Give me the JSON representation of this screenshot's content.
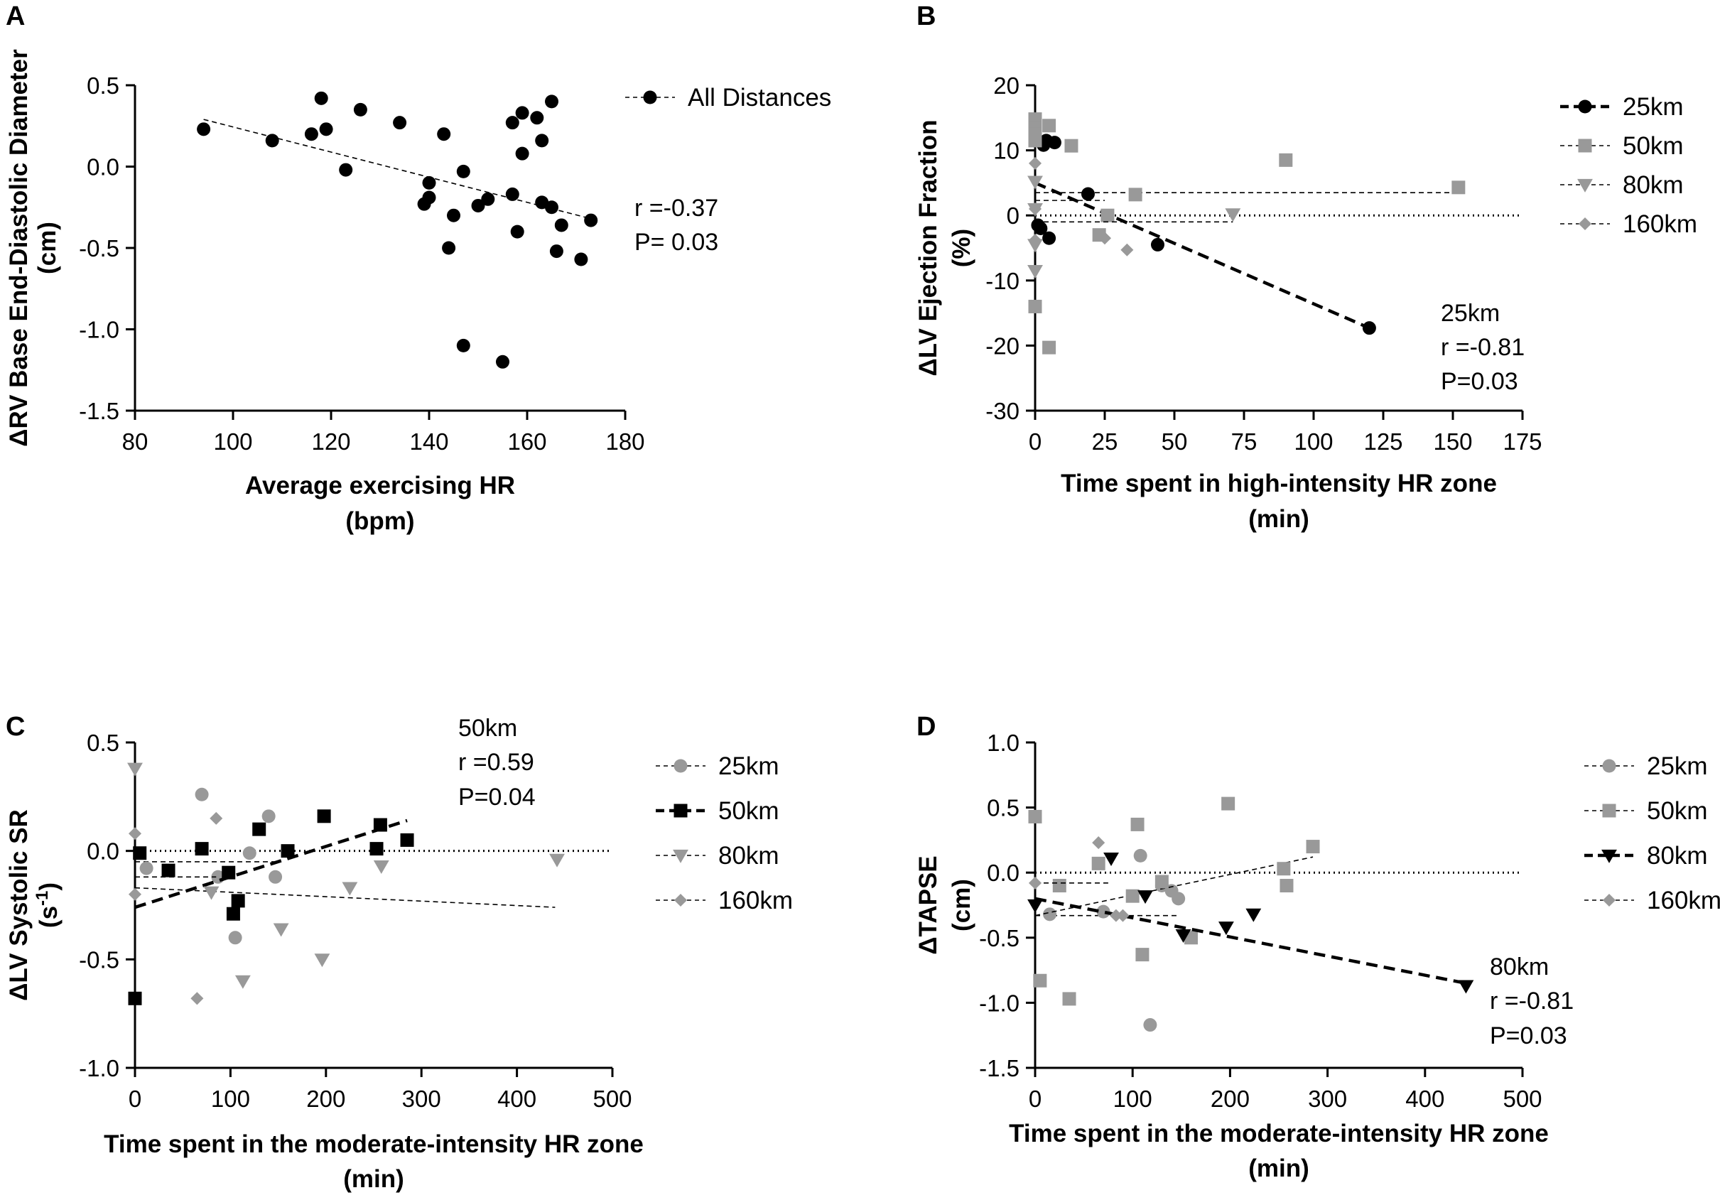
{
  "chart_data": [
    {
      "type": "scatter",
      "panel_label": "A",
      "xlabel": "Average exercising HR",
      "xunit": "(bpm)",
      "ylabel": "ΔRV Base End-Diastolic Diameter",
      "yunit": "(cm)",
      "xlim": [
        80,
        180
      ],
      "ylim": [
        -1.5,
        0.5
      ],
      "xticks": [
        "80",
        "100",
        "120",
        "140",
        "160",
        "180"
      ],
      "yticks": [
        "0.5",
        "0.0",
        "-0.5",
        "-1.0",
        "-1.5"
      ],
      "series": [
        {
          "name": "All Distances",
          "marker": "circle",
          "color": "#000000",
          "fit": [
            [
              94,
              0.29
            ],
            [
              173,
              -0.32
            ]
          ],
          "points": [
            [
              94,
              0.23
            ],
            [
              108,
              0.16
            ],
            [
              116,
              0.2
            ],
            [
              118,
              0.42
            ],
            [
              119,
              0.23
            ],
            [
              123,
              -0.02
            ],
            [
              126,
              0.35
            ],
            [
              134,
              0.27
            ],
            [
              139,
              -0.23
            ],
            [
              140,
              -0.19
            ],
            [
              140,
              -0.1
            ],
            [
              143,
              0.2
            ],
            [
              144,
              -0.5
            ],
            [
              145,
              -0.3
            ],
            [
              147,
              -0.03
            ],
            [
              147,
              -1.1
            ],
            [
              150,
              -0.24
            ],
            [
              152,
              -0.2
            ],
            [
              155,
              -1.2
            ],
            [
              157,
              0.27
            ],
            [
              157,
              -0.17
            ],
            [
              158,
              -0.4
            ],
            [
              159,
              0.33
            ],
            [
              159,
              0.08
            ],
            [
              162,
              0.3
            ],
            [
              163,
              0.16
            ],
            [
              163,
              -0.22
            ],
            [
              165,
              0.4
            ],
            [
              165,
              -0.25
            ],
            [
              166,
              -0.52
            ],
            [
              167,
              -0.36
            ],
            [
              171,
              -0.57
            ],
            [
              173,
              -0.33
            ]
          ]
        }
      ],
      "annotations": [
        "r =-0.37",
        "P= 0.03"
      ]
    },
    {
      "type": "scatter",
      "panel_label": "B",
      "xlabel": "Time spent in high-intensity HR zone",
      "xunit": "(min)",
      "ylabel": "ΔLV Ejection Fraction",
      "yunit": "(%)",
      "xlim": [
        0,
        175
      ],
      "ylim": [
        -30,
        20
      ],
      "xticks": [
        "0",
        "25",
        "50",
        "75",
        "100",
        "125",
        "150",
        "175"
      ],
      "yticks": [
        "20",
        "10",
        "0",
        "-10",
        "-20",
        "-30"
      ],
      "series": [
        {
          "name": "25km",
          "marker": "circle",
          "color": "#000000",
          "fit_bold": true,
          "fit": [
            [
              0,
              5
            ],
            [
              120,
              -17.3
            ]
          ],
          "points": [
            [
              1,
              -1.5
            ],
            [
              2,
              -2
            ],
            [
              3,
              10.8
            ],
            [
              4,
              11.5
            ],
            [
              5,
              -3.5
            ],
            [
              7,
              11.2
            ],
            [
              19,
              3.3
            ],
            [
              44,
              -4.5
            ],
            [
              120,
              -17.3
            ]
          ]
        },
        {
          "name": "50km",
          "marker": "square",
          "color": "#999999",
          "fit": [
            [
              0,
              3.5
            ],
            [
              152,
              3.5
            ]
          ],
          "points": [
            [
              0,
              14.8
            ],
            [
              0,
              13.5
            ],
            [
              0,
              12.5
            ],
            [
              0,
              11.5
            ],
            [
              0,
              -14
            ],
            [
              5,
              13.8
            ],
            [
              5,
              -20.3
            ],
            [
              13,
              10.7
            ],
            [
              23,
              -3
            ],
            [
              26,
              0
            ],
            [
              36,
              3.2
            ],
            [
              90,
              8.5
            ],
            [
              152,
              4.3
            ]
          ]
        },
        {
          "name": "80km",
          "marker": "triangle-down",
          "color": "#999999",
          "fit": [
            [
              0,
              -1
            ],
            [
              71,
              -1
            ]
          ],
          "points": [
            [
              0,
              5.2
            ],
            [
              0,
              1
            ],
            [
              0,
              -4.5
            ],
            [
              0,
              -8.5
            ],
            [
              71,
              0.2
            ]
          ]
        },
        {
          "name": "160km",
          "marker": "diamond",
          "color": "#999999",
          "fit": [
            [
              0,
              2.3
            ],
            [
              25,
              2.3
            ]
          ],
          "points": [
            [
              0,
              8
            ],
            [
              0,
              1
            ],
            [
              0,
              -3.8
            ],
            [
              25,
              -3.5
            ],
            [
              33,
              -5.3
            ]
          ]
        }
      ],
      "annotations": [
        "25km",
        "r =-0.81",
        "P=0.03"
      ]
    },
    {
      "type": "scatter",
      "panel_label": "C",
      "xlabel": "Time spent in the moderate-intensity HR zone",
      "xunit": "(min)",
      "ylabel": "ΔLV Systolic SR",
      "yunit": "(s",
      "yunit_sup": "-1",
      "yunit_end": ")",
      "xlim": [
        0,
        500
      ],
      "ylim": [
        -1.0,
        0.5
      ],
      "xticks": [
        "0",
        "100",
        "200",
        "300",
        "400",
        "500"
      ],
      "yticks": [
        "0.5",
        "0.0",
        "-0.5",
        "-1.0"
      ],
      "series": [
        {
          "name": "25km",
          "marker": "circle",
          "color": "#999999",
          "fit": [
            [
              0,
              -0.05
            ],
            [
              150,
              -0.05
            ]
          ],
          "points": [
            [
              12,
              -0.08
            ],
            [
              70,
              0.26
            ],
            [
              87,
              -0.12
            ],
            [
              105,
              -0.4
            ],
            [
              120,
              -0.01
            ],
            [
              140,
              0.16
            ],
            [
              147,
              -0.12
            ]
          ]
        },
        {
          "name": "50km",
          "marker": "square",
          "color": "#000000",
          "fit_bold": true,
          "fit": [
            [
              0,
              -0.26
            ],
            [
              285,
              0.14
            ]
          ],
          "points": [
            [
              0,
              -0.68
            ],
            [
              5,
              -0.01
            ],
            [
              35,
              -0.09
            ],
            [
              70,
              0.01
            ],
            [
              98,
              -0.1
            ],
            [
              103,
              -0.29
            ],
            [
              108,
              -0.23
            ],
            [
              130,
              0.1
            ],
            [
              160,
              0.0
            ],
            [
              198,
              0.16
            ],
            [
              253,
              0.01
            ],
            [
              257,
              0.12
            ],
            [
              285,
              0.05
            ]
          ]
        },
        {
          "name": "80km",
          "marker": "triangle-down",
          "color": "#999999",
          "fit": [
            [
              0,
              -0.17
            ],
            [
              440,
              -0.26
            ]
          ],
          "points": [
            [
              0,
              0.38
            ],
            [
              80,
              -0.19
            ],
            [
              113,
              -0.6
            ],
            [
              153,
              -0.36
            ],
            [
              196,
              -0.5
            ],
            [
              225,
              -0.17
            ],
            [
              258,
              -0.07
            ],
            [
              442,
              -0.04
            ]
          ]
        },
        {
          "name": "160km",
          "marker": "diamond",
          "color": "#999999",
          "fit": [
            [
              0,
              -0.12
            ],
            [
              85,
              -0.12
            ]
          ],
          "points": [
            [
              0,
              0.08
            ],
            [
              0,
              -0.2
            ],
            [
              65,
              -0.68
            ],
            [
              85,
              0.15
            ]
          ]
        }
      ],
      "annotations": [
        "50km",
        "r =0.59",
        "P=0.04"
      ]
    },
    {
      "type": "scatter",
      "panel_label": "D",
      "xlabel": "Time spent in the moderate-intensity HR zone",
      "xunit": "(min)",
      "ylabel": "ΔTAPSE",
      "yunit": "(cm)",
      "xlim": [
        0,
        500
      ],
      "ylim": [
        -1.5,
        1.0
      ],
      "xticks": [
        "0",
        "100",
        "200",
        "300",
        "400",
        "500"
      ],
      "yticks": [
        "1.0",
        "0.5",
        "0.0",
        "-0.5",
        "-1.0",
        "-1.5"
      ],
      "series": [
        {
          "name": "25km",
          "marker": "circle",
          "color": "#999999",
          "fit": [
            [
              0,
              -0.33
            ],
            [
              145,
              -0.33
            ]
          ],
          "points": [
            [
              15,
              -0.32
            ],
            [
              70,
              -0.3
            ],
            [
              108,
              0.13
            ],
            [
              118,
              -1.17
            ],
            [
              130,
              -0.1
            ],
            [
              140,
              -0.14
            ],
            [
              147,
              -0.2
            ]
          ]
        },
        {
          "name": "50km",
          "marker": "square",
          "color": "#999999",
          "fit": [
            [
              0,
              -0.33
            ],
            [
              285,
              0.12
            ]
          ],
          "points": [
            [
              0,
              0.43
            ],
            [
              5,
              -0.83
            ],
            [
              25,
              -0.1
            ],
            [
              35,
              -0.97
            ],
            [
              65,
              0.07
            ],
            [
              100,
              -0.18
            ],
            [
              105,
              0.37
            ],
            [
              110,
              -0.63
            ],
            [
              130,
              -0.07
            ],
            [
              160,
              -0.5
            ],
            [
              198,
              0.53
            ],
            [
              255,
              0.03
            ],
            [
              258,
              -0.1
            ],
            [
              285,
              0.2
            ]
          ]
        },
        {
          "name": "80km",
          "marker": "triangle-down",
          "color": "#000000",
          "fit_bold": true,
          "fit": [
            [
              0,
              -0.2
            ],
            [
              442,
              -0.85
            ]
          ],
          "points": [
            [
              0,
              -0.25
            ],
            [
              78,
              0.11
            ],
            [
              113,
              -0.18
            ],
            [
              152,
              -0.48
            ],
            [
              196,
              -0.42
            ],
            [
              224,
              -0.32
            ],
            [
              442,
              -0.87
            ]
          ]
        },
        {
          "name": "160km",
          "marker": "diamond",
          "color": "#999999",
          "fit": [
            [
              0,
              -0.08
            ],
            [
              75,
              -0.08
            ]
          ],
          "points": [
            [
              0,
              -0.08
            ],
            [
              65,
              0.23
            ],
            [
              83,
              -0.33
            ],
            [
              90,
              -0.33
            ]
          ]
        }
      ],
      "annotations": [
        "80km",
        "r =-0.81",
        "P=0.03"
      ]
    }
  ]
}
